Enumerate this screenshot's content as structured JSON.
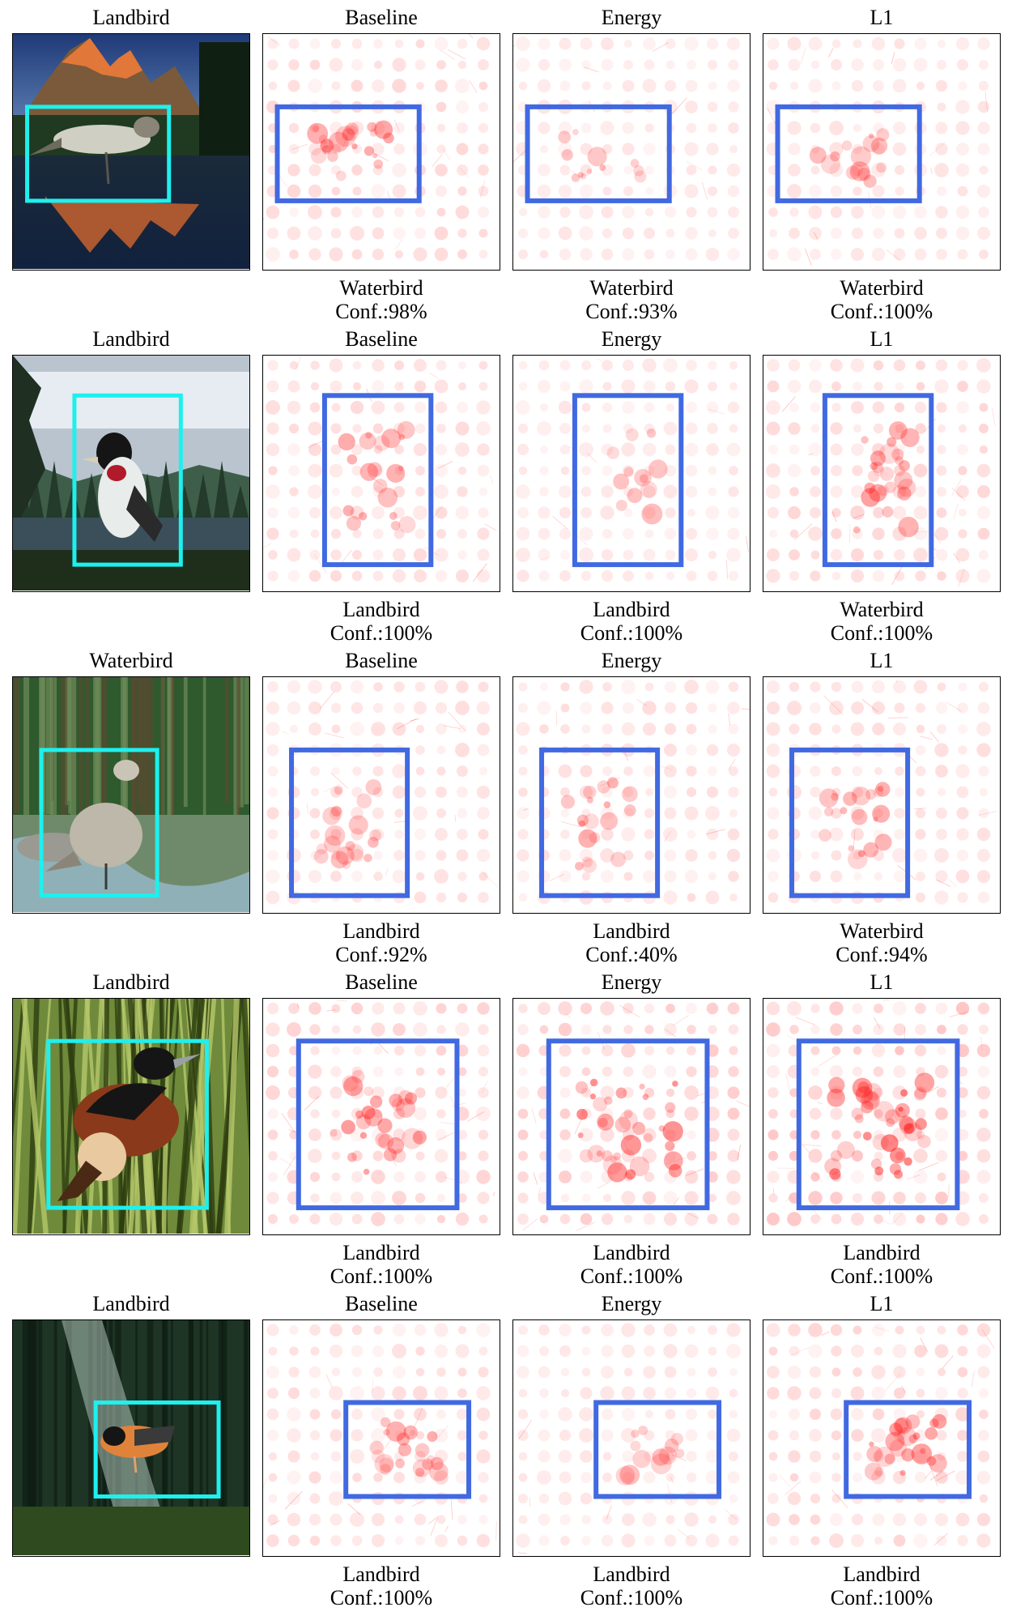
{
  "rows": [
    {
      "image_label": "Landbird",
      "scene": "mountain-lake",
      "panels": [
        {
          "method": "Baseline",
          "prediction": "Waterbird",
          "confidence": "Conf.:98%",
          "heat_level": 0.55
        },
        {
          "method": "Energy",
          "prediction": "Waterbird",
          "confidence": "Conf.:93%",
          "heat_level": 0.3
        },
        {
          "method": "L1",
          "prediction": "Waterbird",
          "confidence": "Conf.:100%",
          "heat_level": 0.35
        }
      ]
    },
    {
      "image_label": "Landbird",
      "scene": "lake-forest",
      "panels": [
        {
          "method": "Baseline",
          "prediction": "Landbird",
          "confidence": "Conf.:100%",
          "heat_level": 0.5
        },
        {
          "method": "Energy",
          "prediction": "Landbird",
          "confidence": "Conf.:100%",
          "heat_level": 0.3
        },
        {
          "method": "L1",
          "prediction": "Waterbird",
          "confidence": "Conf.:100%",
          "heat_level": 0.6
        }
      ]
    },
    {
      "image_label": "Waterbird",
      "scene": "forest-stream",
      "panels": [
        {
          "method": "Baseline",
          "prediction": "Landbird",
          "confidence": "Conf.:92%",
          "heat_level": 0.45
        },
        {
          "method": "Energy",
          "prediction": "Landbird",
          "confidence": "Conf.:40%",
          "heat_level": 0.45
        },
        {
          "method": "L1",
          "prediction": "Waterbird",
          "confidence": "Conf.:94%",
          "heat_level": 0.45
        }
      ]
    },
    {
      "image_label": "Landbird",
      "scene": "bamboo",
      "panels": [
        {
          "method": "Baseline",
          "prediction": "Landbird",
          "confidence": "Conf.:100%",
          "heat_level": 0.65
        },
        {
          "method": "Energy",
          "prediction": "Landbird",
          "confidence": "Conf.:100%",
          "heat_level": 0.8
        },
        {
          "method": "L1",
          "prediction": "Landbird",
          "confidence": "Conf.:100%",
          "heat_level": 0.9
        }
      ]
    },
    {
      "image_label": "Landbird",
      "scene": "sunlit-forest",
      "panels": [
        {
          "method": "Baseline",
          "prediction": "Landbird",
          "confidence": "Conf.:100%",
          "heat_level": 0.5
        },
        {
          "method": "Energy",
          "prediction": "Landbird",
          "confidence": "Conf.:100%",
          "heat_level": 0.3
        },
        {
          "method": "L1",
          "prediction": "Landbird",
          "confidence": "Conf.:100%",
          "heat_level": 0.6
        }
      ]
    }
  ],
  "colors": {
    "image_box": "#1ef0ee",
    "heatmap_box": "#4169e1",
    "heat": "#ff1a1a"
  }
}
